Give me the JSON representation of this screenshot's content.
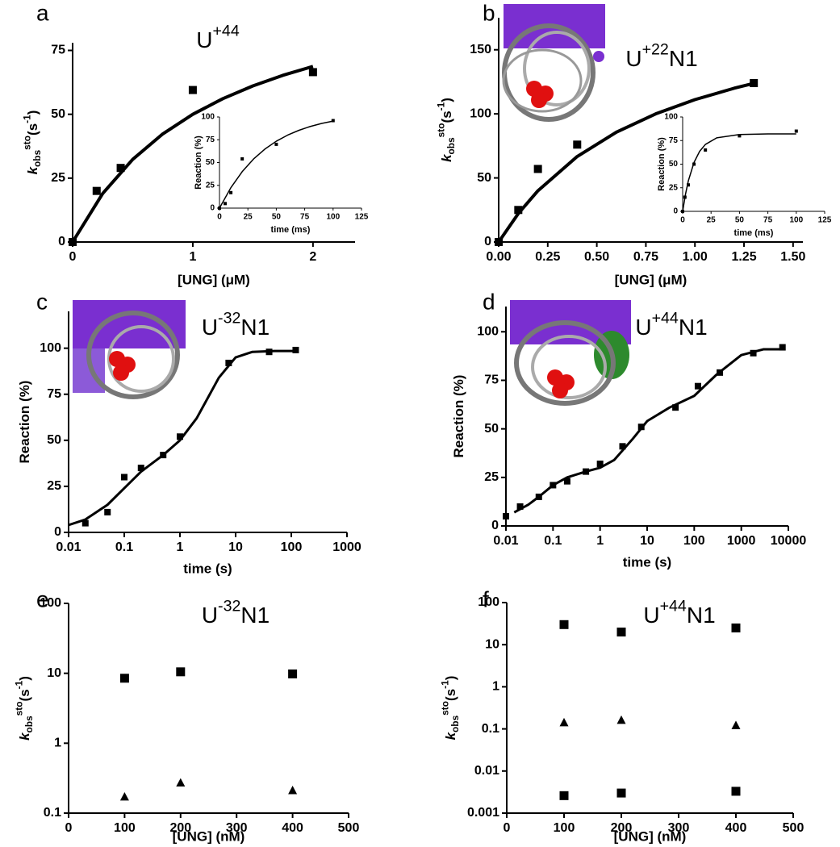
{
  "chart_data": [
    {
      "type": "scatter",
      "panel": "a",
      "title": [
        {
          "text": "U",
          "shift": "base"
        },
        {
          "text": "+44",
          "shift": "super"
        }
      ],
      "xlabel": "[UNG] (μM)",
      "ylabel": [
        {
          "text": "k",
          "shift": "italic"
        },
        {
          "text": "obs",
          "shift": "sub"
        },
        {
          "text": "sto",
          "shift": "super"
        },
        {
          "text": "(s",
          "shift": "base"
        },
        {
          "text": "-1",
          "shift": "super"
        },
        {
          "text": ")",
          "shift": "base"
        }
      ],
      "xlim": [
        0,
        2.35
      ],
      "xticks": [
        0,
        1,
        2
      ],
      "ylim": [
        0,
        78
      ],
      "yticks": [
        0,
        25,
        50,
        75
      ],
      "color": "#000000",
      "series": [
        {
          "marker": "square",
          "x": [
            0,
            0.2,
            0.4,
            1,
            2
          ],
          "values": [
            0,
            20,
            29,
            59.5,
            66.5
          ]
        }
      ],
      "fit": {
        "x": [
          0,
          0.25,
          0.5,
          0.75,
          1,
          1.25,
          1.5,
          1.75,
          2
        ],
        "values": [
          0,
          18.97,
          32.35,
          42.31,
          50,
          56.12,
          61.11,
          65.26,
          68.75
        ]
      }
    },
    {
      "type": "scatter",
      "xlabel": "time (ms)",
      "ylabel": [
        {
          "text": "Reaction (%)",
          "shift": "base"
        }
      ],
      "xlim": [
        0,
        125
      ],
      "xticks": [
        0,
        25,
        50,
        75,
        100,
        125
      ],
      "ylim": [
        0,
        100
      ],
      "yticks": [
        0,
        25,
        50,
        75,
        100
      ],
      "color": "#000000",
      "series": [
        {
          "marker": "square",
          "x": [
            0,
            5,
            10,
            20,
            50,
            100
          ],
          "values": [
            0,
            5,
            17,
            54,
            70,
            96
          ]
        }
      ],
      "fit": {
        "x": [
          0,
          10,
          20,
          30,
          40,
          50,
          60,
          70,
          80,
          90,
          100
        ],
        "values": [
          0,
          22.4,
          40,
          53.9,
          64.8,
          73.4,
          80.1,
          85.4,
          89.6,
          92.9,
          95.5
        ]
      }
    },
    {
      "type": "scatter",
      "panel": "b",
      "title": [
        {
          "text": "U",
          "shift": "base"
        },
        {
          "text": "+22",
          "shift": "super"
        },
        {
          "text": "N1",
          "shift": "base"
        }
      ],
      "xlabel": "[UNG] (μM)",
      "ylabel": [
        {
          "text": "k",
          "shift": "italic"
        },
        {
          "text": "obs",
          "shift": "sub"
        },
        {
          "text": "sto",
          "shift": "super"
        },
        {
          "text": "(s",
          "shift": "base"
        },
        {
          "text": "-1",
          "shift": "super"
        },
        {
          "text": ")",
          "shift": "base"
        }
      ],
      "xlim": [
        0,
        1.55
      ],
      "xticks": [
        {
          "value": 0,
          "label": "0.00"
        },
        0.25,
        {
          "value": 0.5,
          "label": "0.50"
        },
        0.75,
        {
          "value": 1,
          "label": "1.00"
        },
        1.25,
        {
          "value": 1.5,
          "label": "1.50"
        }
      ],
      "ylim": [
        0,
        175
      ],
      "yticks": [
        0,
        50,
        100,
        150
      ],
      "color": "#000000",
      "series": [
        {
          "marker": "square",
          "x": [
            0,
            0.1,
            0.2,
            0.4,
            1.3
          ],
          "values": [
            0,
            25,
            57,
            76,
            124
          ]
        }
      ],
      "fit": {
        "x": [
          0,
          0.1,
          0.2,
          0.4,
          0.6,
          0.8,
          1,
          1.2,
          1.3
        ],
        "values": [
          0,
          22.2,
          40,
          66.7,
          85.7,
          100,
          111.1,
          120,
          123.8
        ]
      }
    },
    {
      "type": "scatter",
      "xlabel": "time (ms)",
      "ylabel": [
        {
          "text": "Reaction (%)",
          "shift": "base"
        }
      ],
      "xlim": [
        0,
        125
      ],
      "xticks": [
        0,
        25,
        50,
        75,
        100,
        125
      ],
      "ylim": [
        0,
        100
      ],
      "yticks": [
        0,
        25,
        50,
        75,
        100
      ],
      "color": "#000000",
      "series": [
        {
          "marker": "square",
          "x": [
            0,
            2,
            5,
            10,
            20,
            50,
            100
          ],
          "values": [
            0,
            15,
            28,
            50,
            65,
            80,
            85
          ]
        }
      ],
      "fit": {
        "x": [
          0,
          2.5,
          5,
          10,
          15,
          20,
          30,
          50,
          75,
          100
        ],
        "values": [
          0,
          18.1,
          32.3,
          51.8,
          63.7,
          70.9,
          77.9,
          81.4,
          82,
          82
        ]
      }
    },
    {
      "type": "scatter",
      "panel": "c",
      "title": [
        {
          "text": "U",
          "shift": "base"
        },
        {
          "text": "-32",
          "shift": "super"
        },
        {
          "text": "N1",
          "shift": "base"
        }
      ],
      "xlabel": "time (s)",
      "ylabel": [
        {
          "text": "Reaction  (%)",
          "shift": "base"
        }
      ],
      "xlog": true,
      "xlim": [
        0.01,
        1000
      ],
      "xticks": [
        0.01,
        0.1,
        1,
        10,
        100,
        1000
      ],
      "ylim": [
        0,
        120
      ],
      "yticks": [
        0,
        25,
        50,
        75,
        100
      ],
      "color": "#000000",
      "series": [
        {
          "marker": "square",
          "x": [
            0.02,
            0.05,
            0.1,
            0.2,
            0.5,
            1,
            7.5,
            40,
            120
          ],
          "values": [
            5,
            11,
            30,
            35,
            42,
            52,
            92,
            98,
            99
          ]
        }
      ],
      "fit": {
        "x": [
          0.01,
          0.02,
          0.05,
          0.1,
          0.2,
          0.5,
          1,
          2,
          5,
          10,
          20,
          50,
          120
        ],
        "values": [
          4,
          7,
          15,
          24,
          33,
          42,
          50,
          62,
          84,
          95,
          98,
          98.5,
          98.5
        ]
      }
    },
    {
      "type": "scatter",
      "panel": "d",
      "title": [
        {
          "text": "U",
          "shift": "base"
        },
        {
          "text": "+44",
          "shift": "super"
        },
        {
          "text": "N1",
          "shift": "base"
        }
      ],
      "xlabel": "time (s)",
      "ylabel": [
        {
          "text": "Reaction (%)",
          "shift": "base"
        }
      ],
      "xlog": true,
      "xlim": [
        0.01,
        10000
      ],
      "xticks": [
        0.01,
        0.1,
        1,
        10,
        100,
        1000,
        10000
      ],
      "ylim": [
        0,
        113
      ],
      "yticks": [
        0,
        25,
        50,
        75,
        100
      ],
      "color": "#000000",
      "series": [
        {
          "marker": "square",
          "x": [
            0.01,
            0.02,
            0.05,
            0.1,
            0.2,
            0.5,
            1,
            3,
            7.5,
            40,
            120,
            350,
            1800,
            7500
          ],
          "values": [
            5,
            10,
            15,
            21,
            23,
            28,
            32,
            41,
            51,
            61,
            72,
            79,
            89,
            92
          ]
        }
      ],
      "fit": {
        "x": [
          0.015,
          0.03,
          0.05,
          0.1,
          0.2,
          0.5,
          1,
          2,
          5,
          10,
          30,
          100,
          300,
          1000,
          3000,
          7500
        ],
        "values": [
          7,
          11,
          15,
          21,
          25,
          28,
          30,
          34,
          45,
          54,
          61,
          67,
          78,
          88,
          91,
          91
        ]
      }
    },
    {
      "type": "scatter",
      "panel": "e",
      "title": [
        {
          "text": "U",
          "shift": "base"
        },
        {
          "text": "-32",
          "shift": "super"
        },
        {
          "text": "N1",
          "shift": "base"
        }
      ],
      "xlabel": "[UNG] (nM)",
      "ylabel": [
        {
          "text": "k",
          "shift": "italic"
        },
        {
          "text": "obs",
          "shift": "sub"
        },
        {
          "text": "sto",
          "shift": "super"
        },
        {
          "text": "(s",
          "shift": "base"
        },
        {
          "text": "-1",
          "shift": "super"
        },
        {
          "text": ")",
          "shift": "base"
        }
      ],
      "xlim": [
        0,
        500
      ],
      "xticks": [
        0,
        100,
        200,
        300,
        400,
        500
      ],
      "ylog": true,
      "ylim": [
        0.1,
        100
      ],
      "yticks": [
        0.1,
        1,
        10,
        100
      ],
      "color": "#000000",
      "series": [
        {
          "marker": "square",
          "x": [
            100,
            200,
            400
          ],
          "values": [
            8.5,
            10.5,
            9.8
          ]
        },
        {
          "marker": "triangle",
          "x": [
            100,
            200,
            400
          ],
          "values": [
            0.17,
            0.27,
            0.21
          ]
        }
      ]
    },
    {
      "type": "scatter",
      "panel": "f",
      "title": [
        {
          "text": "U",
          "shift": "base"
        },
        {
          "text": "+44",
          "shift": "super"
        },
        {
          "text": "N1",
          "shift": "base"
        }
      ],
      "xlabel": "[UNG] (nM)",
      "ylabel": [
        {
          "text": "k",
          "shift": "italic"
        },
        {
          "text": "obs",
          "shift": "sub"
        },
        {
          "text": "sto",
          "shift": "super"
        },
        {
          "text": "(s",
          "shift": "base"
        },
        {
          "text": "-1",
          "shift": "super"
        },
        {
          "text": ")",
          "shift": "base"
        }
      ],
      "xlim": [
        0,
        500
      ],
      "xticks": [
        0,
        100,
        200,
        300,
        400,
        500
      ],
      "ylog": true,
      "ylim": [
        0.001,
        100
      ],
      "yticks": [
        0.001,
        0.01,
        0.1,
        1,
        10,
        100
      ],
      "color": "#000000",
      "series": [
        {
          "marker": "square",
          "x": [
            100,
            200,
            400
          ],
          "values": [
            30,
            20,
            25
          ]
        },
        {
          "marker": "triangle",
          "x": [
            100,
            200,
            400
          ],
          "values": [
            0.14,
            0.16,
            0.12
          ]
        },
        {
          "marker": "square",
          "x": [
            100,
            200,
            400
          ],
          "values": [
            0.0026,
            0.003,
            0.0033
          ]
        }
      ]
    }
  ]
}
